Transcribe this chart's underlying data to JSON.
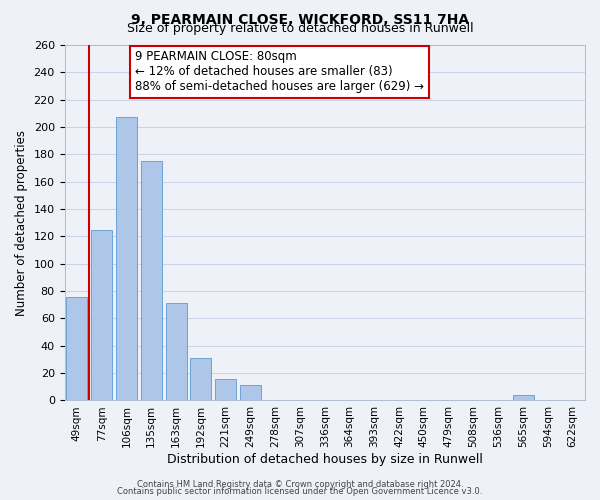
{
  "title": "9, PEARMAIN CLOSE, WICKFORD, SS11 7HA",
  "subtitle": "Size of property relative to detached houses in Runwell",
  "xlabel": "Distribution of detached houses by size in Runwell",
  "ylabel": "Number of detached properties",
  "bar_labels": [
    "49sqm",
    "77sqm",
    "106sqm",
    "135sqm",
    "163sqm",
    "192sqm",
    "221sqm",
    "249sqm",
    "278sqm",
    "307sqm",
    "336sqm",
    "364sqm",
    "393sqm",
    "422sqm",
    "450sqm",
    "479sqm",
    "508sqm",
    "536sqm",
    "565sqm",
    "594sqm",
    "622sqm"
  ],
  "bar_values": [
    76,
    125,
    207,
    175,
    71,
    31,
    16,
    11,
    0,
    0,
    0,
    0,
    0,
    0,
    0,
    0,
    0,
    0,
    4,
    0,
    0
  ],
  "bar_color": "#aec6e8",
  "bar_edge_color": "#5b9bd5",
  "ylim": [
    0,
    260
  ],
  "yticks": [
    0,
    20,
    40,
    60,
    80,
    100,
    120,
    140,
    160,
    180,
    200,
    220,
    240,
    260
  ],
  "property_line_color": "#cc0000",
  "annotation_title": "9 PEARMAIN CLOSE: 80sqm",
  "annotation_line1": "← 12% of detached houses are smaller (83)",
  "annotation_line2": "88% of semi-detached houses are larger (629) →",
  "annotation_box_color": "#cc0000",
  "footer1": "Contains HM Land Registry data © Crown copyright and database right 2024.",
  "footer2": "Contains public sector information licensed under the Open Government Licence v3.0.",
  "background_color": "#eef2f8",
  "grid_color": "#c8d4e8"
}
